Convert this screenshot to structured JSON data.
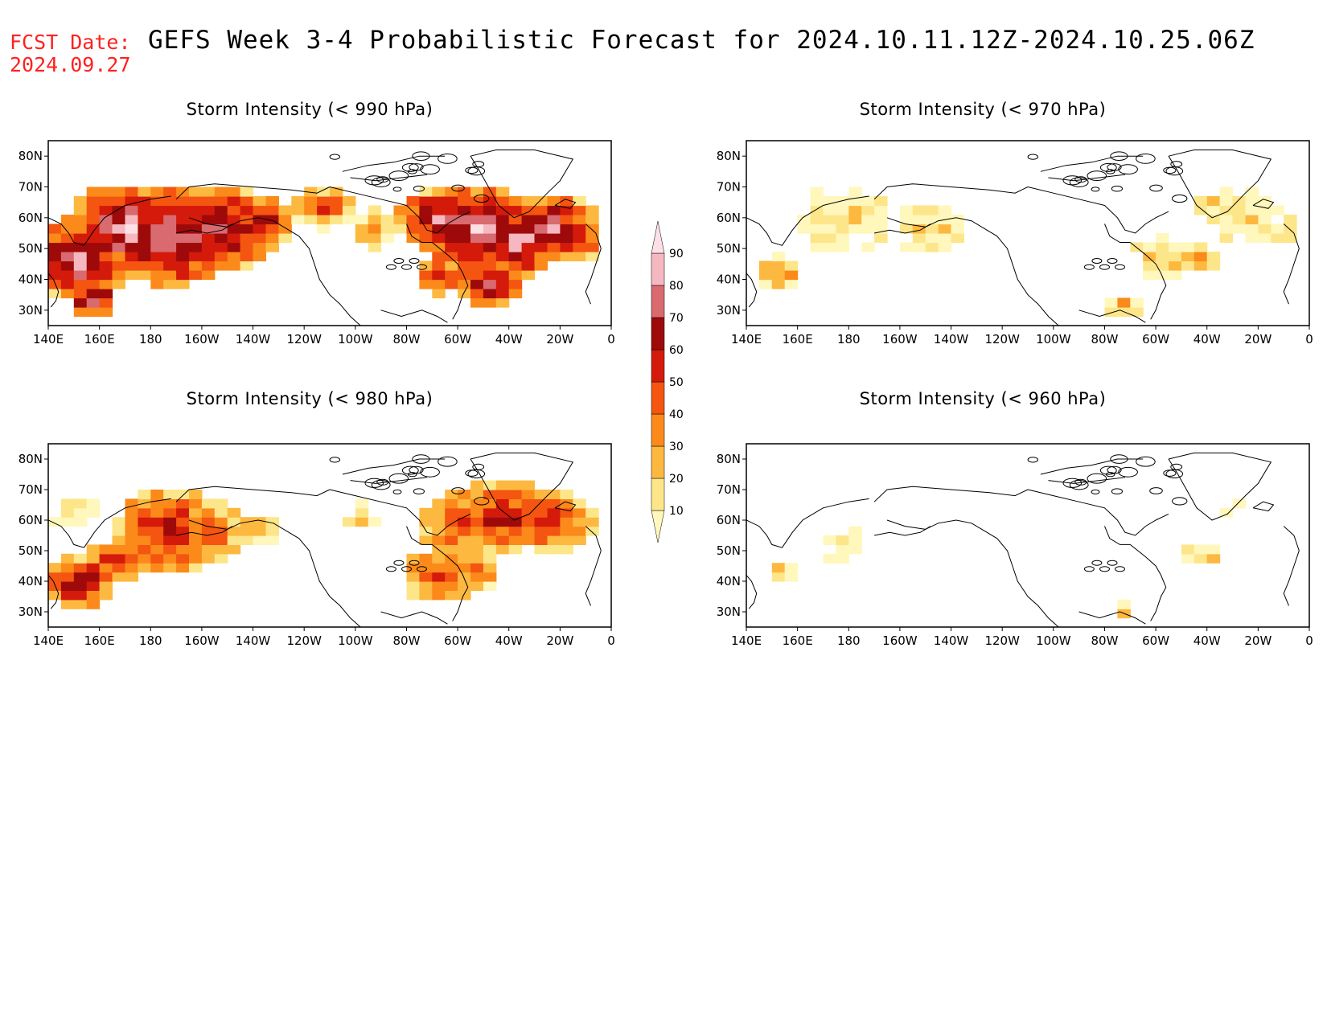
{
  "header": {
    "fcst_label": "FCST Date:",
    "fcst_date": "2024.09.27",
    "title": "GEFS Week 3-4 Probabilistic Forecast for 2024.10.11.12Z-2024.10.25.06Z"
  },
  "axes": {
    "lon_ticks": [
      "140E",
      "160E",
      "180",
      "160W",
      "140W",
      "120W",
      "100W",
      "80W",
      "60W",
      "40W",
      "20W",
      "0"
    ],
    "lat_ticks": [
      "80N",
      "70N",
      "60N",
      "50N",
      "40N",
      "30N"
    ]
  },
  "panels": [
    {
      "id": "p990",
      "title": "Storm Intensity (< 990 hPa)",
      "intensity": "high"
    },
    {
      "id": "p970",
      "title": "Storm Intensity (< 970 hPa)",
      "intensity": "low"
    },
    {
      "id": "p980",
      "title": "Storm Intensity (< 980 hPa)",
      "intensity": "medium"
    },
    {
      "id": "p960",
      "title": "Storm Intensity (< 960 hPa)",
      "intensity": "verylow"
    }
  ],
  "colorbar": {
    "levels": [
      "10",
      "20",
      "30",
      "40",
      "50",
      "60",
      "70",
      "80",
      "90"
    ],
    "colors": [
      "#fff7bc",
      "#fde68a",
      "#fdb840",
      "#fb8a1a",
      "#f45510",
      "#d41a0a",
      "#9e0a0a",
      "#d86a70",
      "#f6b8c0",
      "#fde0e6"
    ]
  }
}
